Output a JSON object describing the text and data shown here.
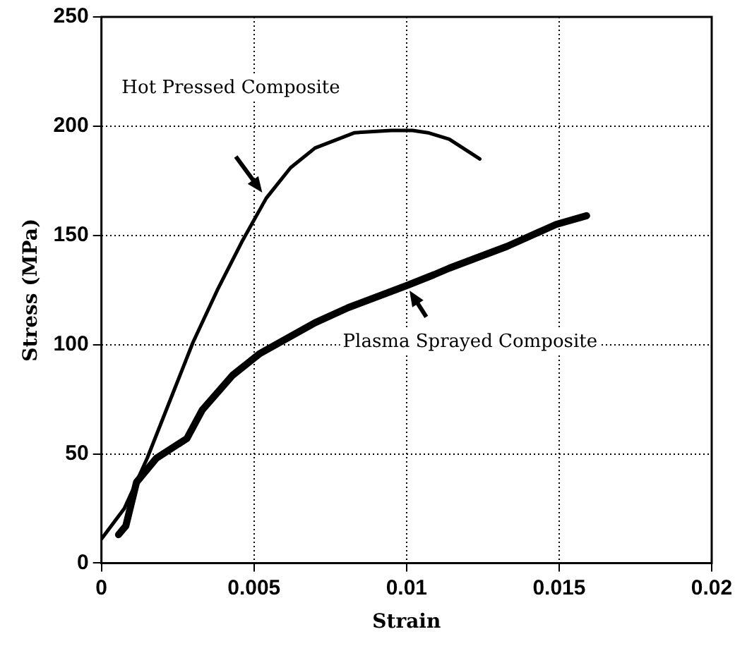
{
  "chart_data": {
    "type": "line",
    "xlabel": "Strain",
    "ylabel": "Stress (MPa)",
    "xlim": [
      0,
      0.02
    ],
    "xticks": [
      0,
      0.005,
      0.01,
      0.015,
      0.02
    ],
    "ylim": [
      0,
      250
    ],
    "yticks": [
      0,
      50,
      100,
      150,
      200,
      250
    ],
    "grid": true,
    "marker": "none",
    "line_style": "solid",
    "series": [
      {
        "name": "Hot Pressed Composite",
        "color": "#000000",
        "x": [
          0,
          0.00075,
          0.0015,
          0.003,
          0.0038,
          0.0046,
          0.0054,
          0.0062,
          0.007,
          0.0083,
          0.0095,
          0.0102,
          0.0107,
          0.0114,
          0.0124
        ],
        "values": [
          11,
          25,
          48,
          101,
          125,
          147,
          167,
          181,
          190,
          197,
          198,
          198,
          197,
          194,
          185
        ]
      },
      {
        "name": "Plasma Sprayed Composite",
        "color": "#000000",
        "x": [
          0.00056,
          0.0008,
          0.00115,
          0.0018,
          0.0028,
          0.0033,
          0.0043,
          0.0052,
          0.007,
          0.0081,
          0.01,
          0.0109,
          0.0114,
          0.0133,
          0.0149,
          0.0159
        ],
        "values": [
          13,
          17,
          37,
          48,
          57,
          70,
          86,
          96,
          110,
          117,
          127,
          132,
          135,
          145,
          155,
          159
        ]
      }
    ]
  }
}
